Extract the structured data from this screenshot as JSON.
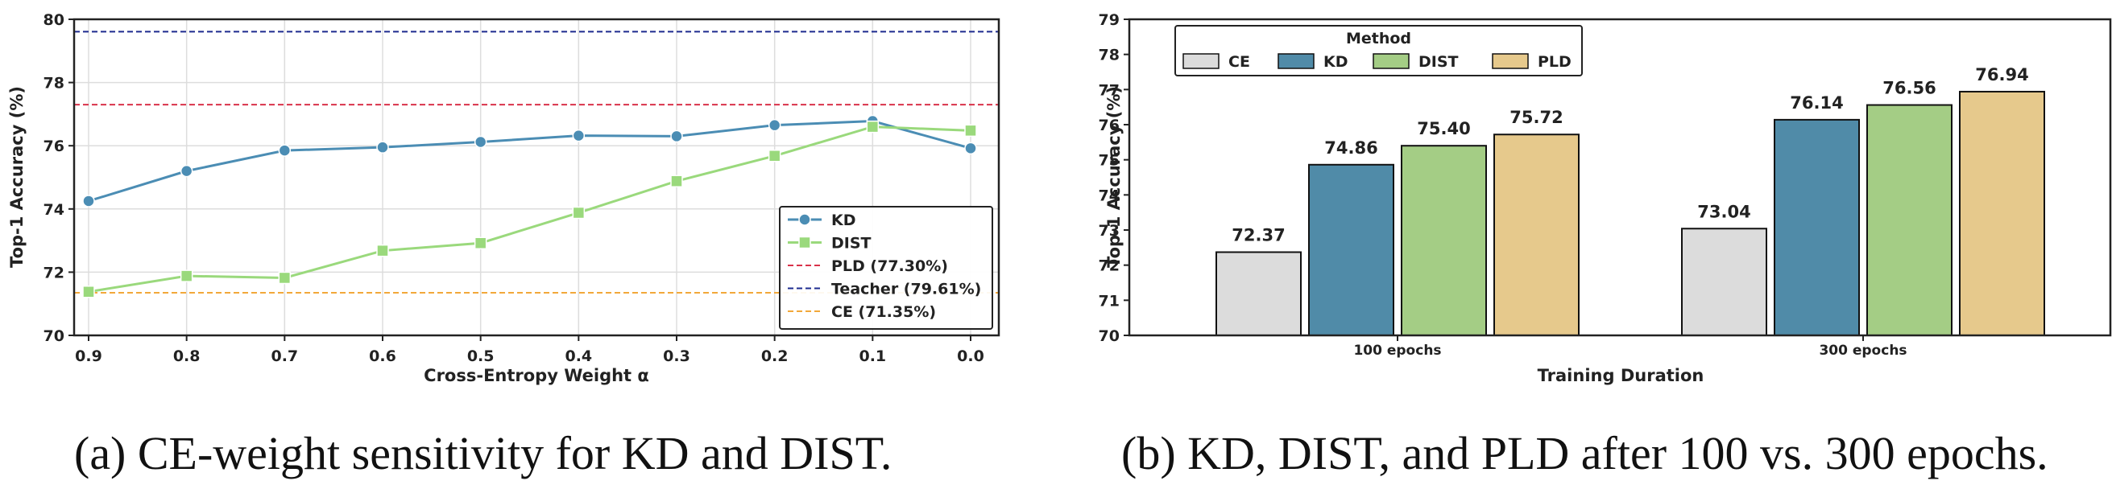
{
  "colors": {
    "kd": "#4b8db4",
    "dist": "#9ad97c",
    "pld_line": "#d9324a",
    "teacher_line": "#1d2b8f",
    "ce_line": "#f2a83a",
    "bar_ce": "#dcdcdc",
    "bar_kd": "#508ba8",
    "bar_dist": "#a4cd85",
    "bar_pld": "#e6c98c"
  },
  "captions": {
    "a": "(a) CE-weight sensitivity for KD and DIST.",
    "b": "(b) KD, DIST, and PLD after 100 vs. 300 epochs."
  },
  "chart_data": [
    {
      "type": "line",
      "xlabel": "Cross-Entropy Weight  α",
      "ylabel": "Top-1 Accuracy (%)",
      "x": [
        "0.9",
        "0.8",
        "0.7",
        "0.6",
        "0.5",
        "0.4",
        "0.3",
        "0.2",
        "0.1",
        "0.0"
      ],
      "ylim": [
        70,
        80
      ],
      "yticks": [
        "70",
        "72",
        "74",
        "76",
        "78",
        "80"
      ],
      "grid": true,
      "legend_position": "lower-right",
      "series": [
        {
          "name": "KD",
          "marker": "circle",
          "values": [
            74.25,
            75.2,
            75.85,
            75.95,
            76.12,
            76.32,
            76.3,
            76.65,
            76.78,
            75.92
          ]
        },
        {
          "name": "DIST",
          "marker": "square",
          "values": [
            71.38,
            71.88,
            71.82,
            72.68,
            72.92,
            73.88,
            74.88,
            75.68,
            76.6,
            76.48
          ]
        }
      ],
      "reference_lines": [
        {
          "name": "PLD (77.30%)",
          "value": 77.3,
          "style": "dashed"
        },
        {
          "name": "Teacher (79.61%)",
          "value": 79.61,
          "style": "dashed"
        },
        {
          "name": "CE (71.35%)",
          "value": 71.35,
          "style": "dashed"
        }
      ]
    },
    {
      "type": "bar",
      "xlabel": "Training Duration",
      "ylabel": "Top-1 Accuracy (%)",
      "categories": [
        "100 epochs",
        "300 epochs"
      ],
      "ylim": [
        70,
        79
      ],
      "yticks": [
        "70",
        "71",
        "72",
        "73",
        "74",
        "75",
        "76",
        "77",
        "78",
        "79"
      ],
      "grid": false,
      "legend_title": "Method",
      "legend_position": "top-left",
      "series": [
        {
          "name": "CE",
          "values": [
            72.37,
            73.04
          ],
          "labels": [
            "72.37",
            "73.04"
          ]
        },
        {
          "name": "KD",
          "values": [
            74.86,
            76.14
          ],
          "labels": [
            "74.86",
            "76.14"
          ]
        },
        {
          "name": "DIST",
          "values": [
            75.4,
            76.56
          ],
          "labels": [
            "75.40",
            "76.56"
          ]
        },
        {
          "name": "PLD",
          "values": [
            75.72,
            76.94
          ],
          "labels": [
            "75.72",
            "76.94"
          ]
        }
      ]
    }
  ]
}
